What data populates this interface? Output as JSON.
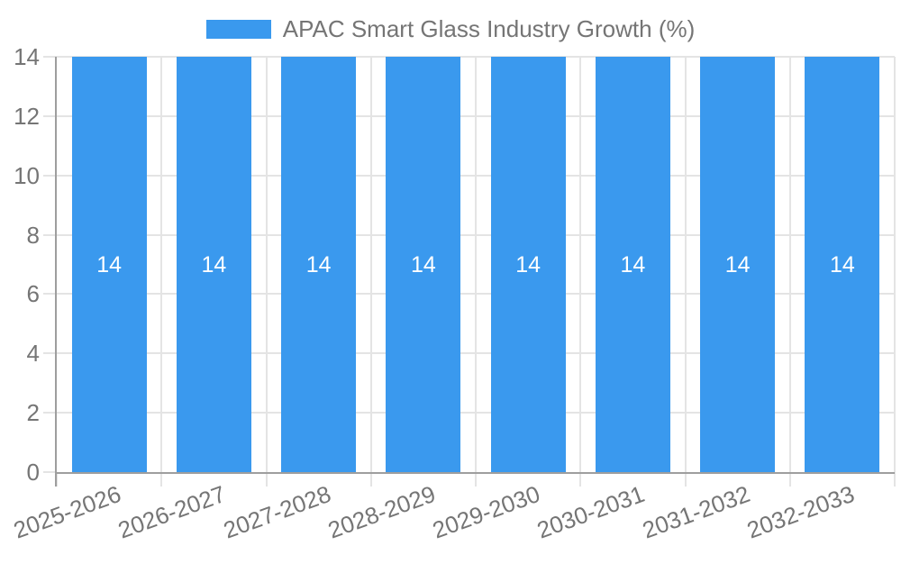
{
  "chart_data": {
    "type": "bar",
    "title": "APAC Smart Glass Industry Growth (%)",
    "legend_position": "top",
    "legend": [
      {
        "label": "APAC Smart Glass Industry Growth (%)",
        "color": "#3A99EE"
      }
    ],
    "categories": [
      "2025-2026",
      "2026-2027",
      "2027-2028",
      "2028-2029",
      "2029-2030",
      "2030-2031",
      "2031-2032",
      "2032-2033"
    ],
    "series": [
      {
        "name": "APAC Smart Glass Industry Growth (%)",
        "values": [
          14,
          14,
          14,
          14,
          14,
          14,
          14,
          14
        ]
      }
    ],
    "value_labels": [
      "14",
      "14",
      "14",
      "14",
      "14",
      "14",
      "14",
      "14"
    ],
    "xlabel": "",
    "ylabel": "",
    "ylim": [
      0,
      14
    ],
    "y_ticks": [
      0,
      2,
      4,
      6,
      8,
      10,
      12,
      14
    ],
    "grid": true,
    "colors": {
      "bar": "#3A99EE",
      "bar_value_text": "#FFFFFF",
      "grid_line": "#E4E4E4",
      "axis_line": "#9E9E9E",
      "tick_text": "#757575"
    }
  }
}
